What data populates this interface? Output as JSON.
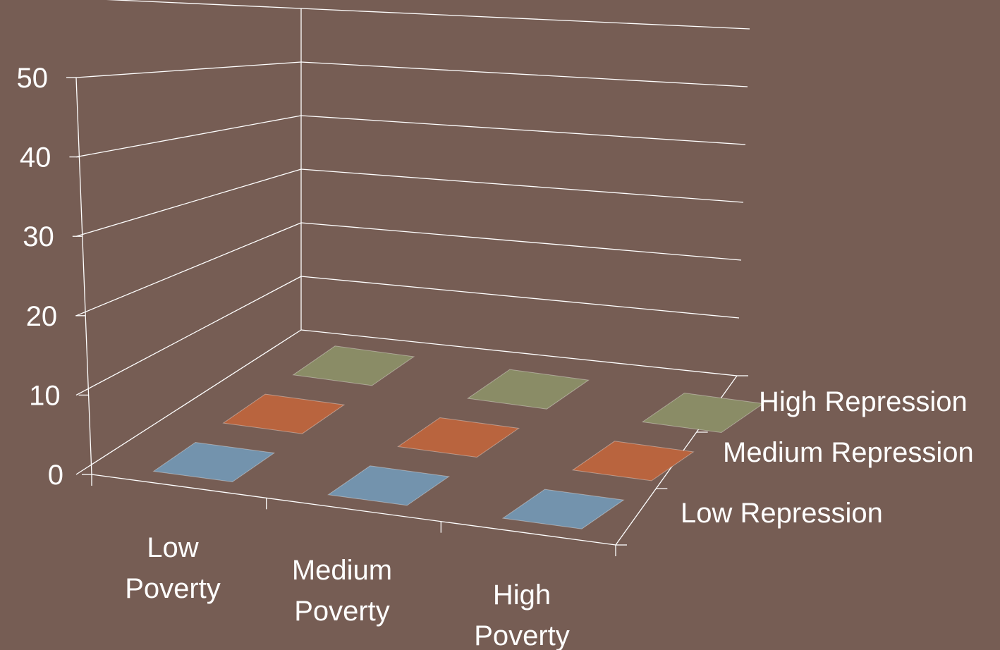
{
  "chart_data": {
    "type": "bar",
    "projection": "3d",
    "categories": [
      "Low Poverty",
      "Medium Poverty",
      "High Poverty"
    ],
    "category_label_lines": [
      [
        "Low",
        "Poverty"
      ],
      [
        "Medium",
        "Poverty"
      ],
      [
        "High",
        "Poverty"
      ]
    ],
    "depth_categories": [
      "Low Repression",
      "Medium Repression",
      "High Repression"
    ],
    "series": [
      {
        "name": "Low Repression",
        "values": [
          0,
          0,
          0
        ],
        "color": "#7393ad"
      },
      {
        "name": "Medium Repression",
        "values": [
          0,
          0,
          0
        ],
        "color": "#b9643e"
      },
      {
        "name": "High Repression",
        "values": [
          0,
          0,
          0
        ],
        "color": "#8a8c66"
      }
    ],
    "z_ticks": [
      "0",
      "10",
      "20",
      "30",
      "40",
      "50"
    ],
    "z_range": [
      0,
      60
    ],
    "grid": true,
    "title": "",
    "xlabel": "",
    "ylabel": "",
    "colors": {
      "background": "#765d54",
      "axis": "#ffffff",
      "text": "#ffffff"
    }
  }
}
